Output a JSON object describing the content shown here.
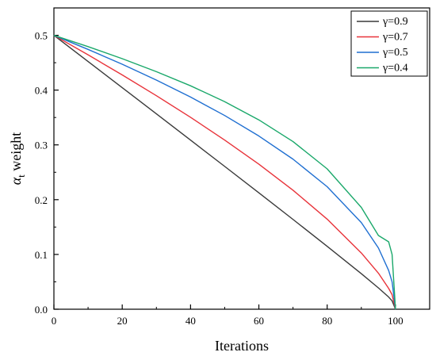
{
  "chart_data": {
    "type": "line",
    "title": "",
    "xlabel": "Iterations",
    "ylabel_main": "α",
    "ylabel_sub": "t",
    "ylabel_rest": " weight",
    "xlim": [
      0,
      110
    ],
    "ylim": [
      0,
      0.55
    ],
    "x_ticks": [
      0,
      20,
      40,
      60,
      80,
      100
    ],
    "x_tick_labels": [
      "0",
      "20",
      "40",
      "60",
      "80",
      "100"
    ],
    "y_ticks": [
      0,
      0.1,
      0.2,
      0.3,
      0.4,
      0.5
    ],
    "y_tick_labels": [
      "0.0",
      "0.1",
      "0.2",
      "0.3",
      "0.4",
      "0.5"
    ],
    "grid": false,
    "legend_position": "top-right",
    "x": [
      0,
      10,
      20,
      30,
      40,
      50,
      60,
      70,
      80,
      90,
      95,
      98,
      99,
      100
    ],
    "series": [
      {
        "name": "γ=0.9",
        "color": "#3a3a3a",
        "values": [
          0.5,
          0.4522,
          0.4045,
          0.3567,
          0.3087,
          0.2607,
          0.2125,
          0.1639,
          0.1148,
          0.0649,
          0.0389,
          0.0222,
          0.0153,
          0.0
        ]
      },
      {
        "name": "γ=0.7",
        "color": "#e8333a",
        "values": [
          0.5,
          0.4644,
          0.4277,
          0.3898,
          0.3503,
          0.3088,
          0.2648,
          0.2172,
          0.1644,
          0.1026,
          0.0658,
          0.038,
          0.0266,
          0.0
        ]
      },
      {
        "name": "γ=0.5",
        "color": "#1f6fd1",
        "values": [
          0.5,
          0.4743,
          0.4472,
          0.4183,
          0.3873,
          0.3536,
          0.3162,
          0.2739,
          0.2236,
          0.1581,
          0.1118,
          0.0707,
          0.05,
          0.0
        ]
      },
      {
        "name": "γ=0.4",
        "color": "#1aa86a",
        "values": [
          0.5,
          0.4794,
          0.4574,
          0.4337,
          0.4079,
          0.3789,
          0.3456,
          0.306,
          0.2562,
          0.1858,
          0.1346,
          0.123,
          0.1,
          0.0
        ]
      }
    ]
  }
}
